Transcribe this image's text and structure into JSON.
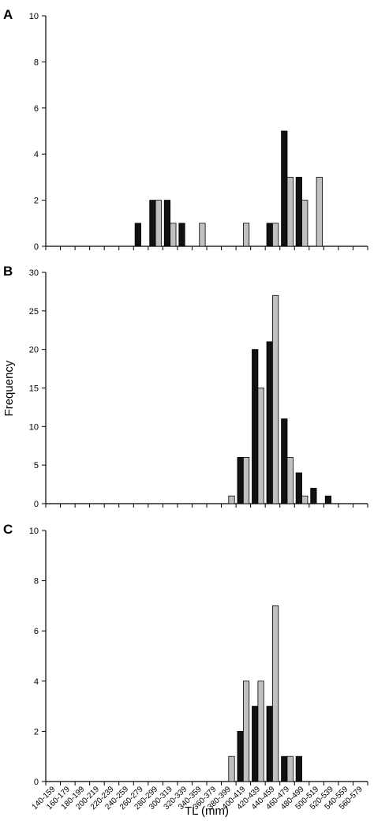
{
  "figure": {
    "ylabel": "Frequency",
    "xlabel": "TL (mm)",
    "categories": [
      "140-159",
      "160-179",
      "180-199",
      "200-219",
      "220-239",
      "240-259",
      "260-279",
      "280-299",
      "300-319",
      "320-339",
      "340-359",
      "360-379",
      "380-399",
      "400-419",
      "420-439",
      "440-459",
      "460-479",
      "480-499",
      "500-519",
      "520-539",
      "540-559",
      "560-579"
    ],
    "colors": {
      "series1": "#111111",
      "series2": "#c0c0c0"
    }
  },
  "chart_data": [
    {
      "type": "bar",
      "panel_label": "A",
      "ylim": [
        0,
        10
      ],
      "yticks": [
        0,
        2,
        4,
        6,
        8,
        10
      ],
      "series": [
        {
          "values": [
            0,
            0,
            0,
            0,
            0,
            0,
            1,
            2,
            2,
            1,
            0,
            0,
            0,
            0,
            0,
            1,
            5,
            3,
            0,
            0,
            0,
            0
          ]
        },
        {
          "values": [
            0,
            0,
            0,
            0,
            0,
            0,
            0,
            2,
            1,
            0,
            1,
            0,
            0,
            1,
            0,
            1,
            3,
            2,
            3,
            0,
            0,
            0
          ]
        }
      ]
    },
    {
      "type": "bar",
      "panel_label": "B",
      "ylim": [
        0,
        30
      ],
      "yticks": [
        0,
        5,
        10,
        15,
        20,
        25,
        30
      ],
      "series": [
        {
          "values": [
            0,
            0,
            0,
            0,
            0,
            0,
            0,
            0,
            0,
            0,
            0,
            0,
            0,
            6,
            20,
            21,
            11,
            4,
            2,
            1,
            0,
            0
          ]
        },
        {
          "values": [
            0,
            0,
            0,
            0,
            0,
            0,
            0,
            0,
            0,
            0,
            0,
            0,
            1,
            6,
            15,
            27,
            6,
            1,
            0,
            0,
            0,
            0
          ]
        }
      ]
    },
    {
      "type": "bar",
      "panel_label": "C",
      "ylim": [
        0,
        10
      ],
      "yticks": [
        0,
        2,
        4,
        6,
        8,
        10
      ],
      "series": [
        {
          "values": [
            0,
            0,
            0,
            0,
            0,
            0,
            0,
            0,
            0,
            0,
            0,
            0,
            0,
            2,
            3,
            3,
            1,
            1,
            0,
            0,
            0,
            0
          ]
        },
        {
          "values": [
            0,
            0,
            0,
            0,
            0,
            0,
            0,
            0,
            0,
            0,
            0,
            0,
            1,
            4,
            4,
            7,
            1,
            0,
            0,
            0,
            0,
            0
          ]
        }
      ]
    }
  ]
}
